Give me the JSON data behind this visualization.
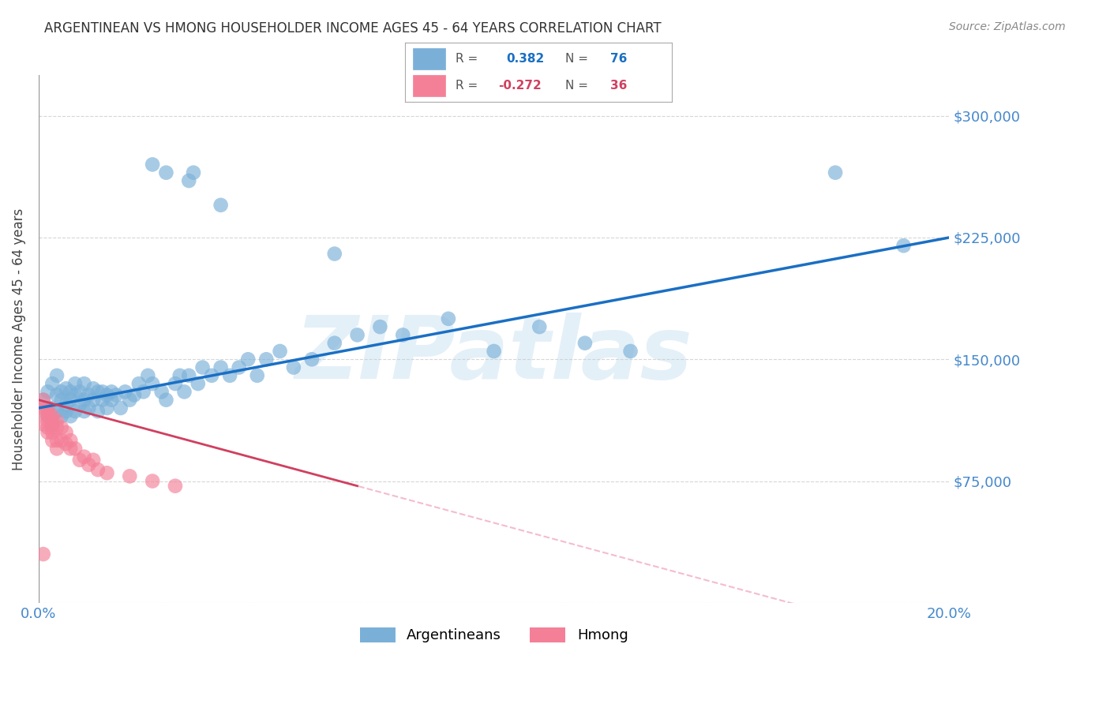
{
  "title": "ARGENTINEAN VS HMONG HOUSEHOLDER INCOME AGES 45 - 64 YEARS CORRELATION CHART",
  "source": "Source: ZipAtlas.com",
  "ylabel": "Householder Income Ages 45 - 64 years",
  "xlim": [
    0.0,
    0.2
  ],
  "ylim": [
    0,
    325000
  ],
  "yticks": [
    0,
    75000,
    150000,
    225000,
    300000
  ],
  "ytick_labels": [
    "",
    "$75,000",
    "$150,000",
    "$225,000",
    "$300,000"
  ],
  "xticks": [
    0.0,
    0.04,
    0.08,
    0.12,
    0.16,
    0.2
  ],
  "xtick_labels": [
    "0.0%",
    "",
    "",
    "",
    "",
    "20.0%"
  ],
  "watermark": "ZIPatlas",
  "argentinean_color": "#7ab0d8",
  "hmong_color": "#f48098",
  "trend_arg_color": "#1a6fc4",
  "trend_hmong_color": "#d04060",
  "background_color": "#ffffff",
  "grid_color": "#cccccc",
  "axis_color": "#4488cc",
  "argentinean_x": [
    0.001,
    0.002,
    0.002,
    0.003,
    0.003,
    0.003,
    0.004,
    0.004,
    0.004,
    0.005,
    0.005,
    0.005,
    0.006,
    0.006,
    0.006,
    0.007,
    0.007,
    0.007,
    0.008,
    0.008,
    0.008,
    0.009,
    0.009,
    0.01,
    0.01,
    0.01,
    0.011,
    0.011,
    0.012,
    0.012,
    0.013,
    0.013,
    0.014,
    0.014,
    0.015,
    0.015,
    0.016,
    0.016,
    0.017,
    0.018,
    0.019,
    0.02,
    0.021,
    0.022,
    0.023,
    0.024,
    0.025,
    0.027,
    0.028,
    0.03,
    0.031,
    0.032,
    0.033,
    0.035,
    0.036,
    0.038,
    0.04,
    0.042,
    0.044,
    0.046,
    0.048,
    0.05,
    0.053,
    0.056,
    0.06,
    0.065,
    0.07,
    0.075,
    0.08,
    0.09,
    0.1,
    0.11,
    0.12,
    0.13,
    0.175,
    0.19
  ],
  "argentinean_y": [
    125000,
    130000,
    115000,
    120000,
    110000,
    135000,
    128000,
    118000,
    140000,
    125000,
    115000,
    130000,
    122000,
    132000,
    118000,
    125000,
    115000,
    130000,
    128000,
    118000,
    135000,
    122000,
    130000,
    125000,
    135000,
    118000,
    128000,
    120000,
    125000,
    132000,
    130000,
    118000,
    125000,
    130000,
    128000,
    120000,
    130000,
    125000,
    128000,
    120000,
    130000,
    125000,
    128000,
    135000,
    130000,
    140000,
    135000,
    130000,
    125000,
    135000,
    140000,
    130000,
    140000,
    135000,
    145000,
    140000,
    145000,
    140000,
    145000,
    150000,
    140000,
    150000,
    155000,
    145000,
    150000,
    160000,
    165000,
    170000,
    165000,
    175000,
    155000,
    170000,
    160000,
    155000,
    265000,
    220000
  ],
  "argentinean_outliers_x": [
    0.025,
    0.028,
    0.033,
    0.034,
    0.04,
    0.065
  ],
  "argentinean_outliers_y": [
    270000,
    265000,
    260000,
    265000,
    245000,
    215000
  ],
  "hmong_x": [
    0.001,
    0.001,
    0.001,
    0.001,
    0.002,
    0.002,
    0.002,
    0.002,
    0.002,
    0.002,
    0.003,
    0.003,
    0.003,
    0.003,
    0.003,
    0.003,
    0.004,
    0.004,
    0.004,
    0.004,
    0.005,
    0.005,
    0.006,
    0.006,
    0.007,
    0.007,
    0.008,
    0.009,
    0.01,
    0.011,
    0.012,
    0.013,
    0.015,
    0.02,
    0.025,
    0.03
  ],
  "hmong_y": [
    125000,
    118000,
    110000,
    120000,
    115000,
    108000,
    118000,
    112000,
    120000,
    105000,
    112000,
    108000,
    115000,
    100000,
    110000,
    105000,
    108000,
    100000,
    112000,
    95000,
    100000,
    108000,
    98000,
    105000,
    95000,
    100000,
    95000,
    88000,
    90000,
    85000,
    88000,
    82000,
    80000,
    78000,
    75000,
    72000
  ],
  "hmong_outlier_x": [
    0.001
  ],
  "hmong_outlier_y": [
    30000
  ],
  "R_arg": 0.382,
  "N_arg": 76,
  "R_hmong": -0.272,
  "N_hmong": 36,
  "trend_arg_x0": 0.0,
  "trend_arg_y0": 120000,
  "trend_arg_x1": 0.2,
  "trend_arg_y1": 225000,
  "trend_hmong_x0": 0.0,
  "trend_hmong_y0": 125000,
  "trend_hmong_x1": 0.07,
  "trend_hmong_y1": 72000
}
